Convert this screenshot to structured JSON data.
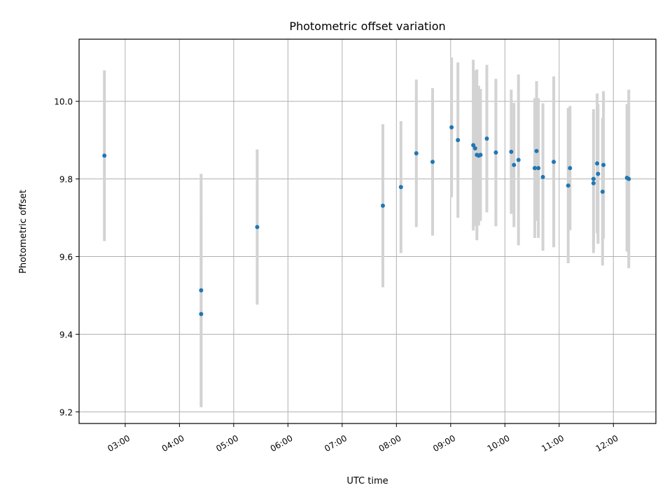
{
  "chart_data": {
    "type": "scatter",
    "title": "Photometric offset variation",
    "xlabel": "UTC time",
    "ylabel": "Photometric offset",
    "x_tick_labels": [
      "03:00",
      "04:00",
      "05:00",
      "06:00",
      "07:00",
      "08:00",
      "09:00",
      "10:00",
      "11:00",
      "12:00"
    ],
    "x_ticks": [
      "03:00",
      "04:00",
      "05:00",
      "06:00",
      "07:00",
      "08:00",
      "09:00",
      "10:00",
      "11:00",
      "12:00"
    ],
    "y_ticks": [
      9.2,
      9.4,
      9.6,
      9.8,
      10.0
    ],
    "y_tick_labels": [
      "9.2",
      "9.4",
      "9.6",
      "9.8",
      "10.0"
    ],
    "xlim": [
      "02:09",
      "12:47"
    ],
    "ylim": [
      9.17,
      10.16
    ],
    "grid": true,
    "marker_color": "#1f77b4",
    "errorbar_color": "#d3d3d3",
    "points": [
      {
        "x": "02:37",
        "y": 9.86,
        "yerr": 0.22
      },
      {
        "x": "04:24",
        "y": 9.513,
        "yerr": 0.3
      },
      {
        "x": "04:24",
        "y": 9.452,
        "yerr": 0.24
      },
      {
        "x": "05:26",
        "y": 9.676,
        "yerr": 0.2
      },
      {
        "x": "07:45",
        "y": 9.731,
        "yerr": 0.21
      },
      {
        "x": "08:05",
        "y": 9.779,
        "yerr": 0.17
      },
      {
        "x": "08:22",
        "y": 9.866,
        "yerr": 0.19
      },
      {
        "x": "08:40",
        "y": 9.844,
        "yerr": 0.19
      },
      {
        "x": "09:01",
        "y": 9.933,
        "yerr": 0.18
      },
      {
        "x": "09:08",
        "y": 9.9,
        "yerr": 0.2
      },
      {
        "x": "09:25",
        "y": 9.887,
        "yerr": 0.22
      },
      {
        "x": "09:27",
        "y": 9.879,
        "yerr": 0.2
      },
      {
        "x": "09:29",
        "y": 9.862,
        "yerr": 0.22
      },
      {
        "x": "09:31",
        "y": 9.86,
        "yerr": 0.18
      },
      {
        "x": "09:33",
        "y": 9.862,
        "yerr": 0.17
      },
      {
        "x": "09:40",
        "y": 9.904,
        "yerr": 0.19
      },
      {
        "x": "09:50",
        "y": 9.868,
        "yerr": 0.19
      },
      {
        "x": "10:07",
        "y": 9.87,
        "yerr": 0.16
      },
      {
        "x": "10:10",
        "y": 9.836,
        "yerr": 0.16
      },
      {
        "x": "10:15",
        "y": 9.849,
        "yerr": 0.22
      },
      {
        "x": "10:33",
        "y": 9.828,
        "yerr": 0.18
      },
      {
        "x": "10:35",
        "y": 9.872,
        "yerr": 0.18
      },
      {
        "x": "10:37",
        "y": 9.828,
        "yerr": 0.18
      },
      {
        "x": "10:42",
        "y": 9.805,
        "yerr": 0.19
      },
      {
        "x": "10:54",
        "y": 9.844,
        "yerr": 0.22
      },
      {
        "x": "11:10",
        "y": 9.783,
        "yerr": 0.2
      },
      {
        "x": "11:12",
        "y": 9.828,
        "yerr": 0.16
      },
      {
        "x": "11:38",
        "y": 9.8,
        "yerr": 0.18
      },
      {
        "x": "11:38",
        "y": 9.789,
        "yerr": 0.18
      },
      {
        "x": "11:42",
        "y": 9.84,
        "yerr": 0.18
      },
      {
        "x": "11:43",
        "y": 9.813,
        "yerr": 0.18
      },
      {
        "x": "11:48",
        "y": 9.767,
        "yerr": 0.19
      },
      {
        "x": "11:49",
        "y": 9.836,
        "yerr": 0.19
      },
      {
        "x": "12:15",
        "y": 9.803,
        "yerr": 0.19
      },
      {
        "x": "12:17",
        "y": 9.8,
        "yerr": 0.23
      }
    ]
  }
}
